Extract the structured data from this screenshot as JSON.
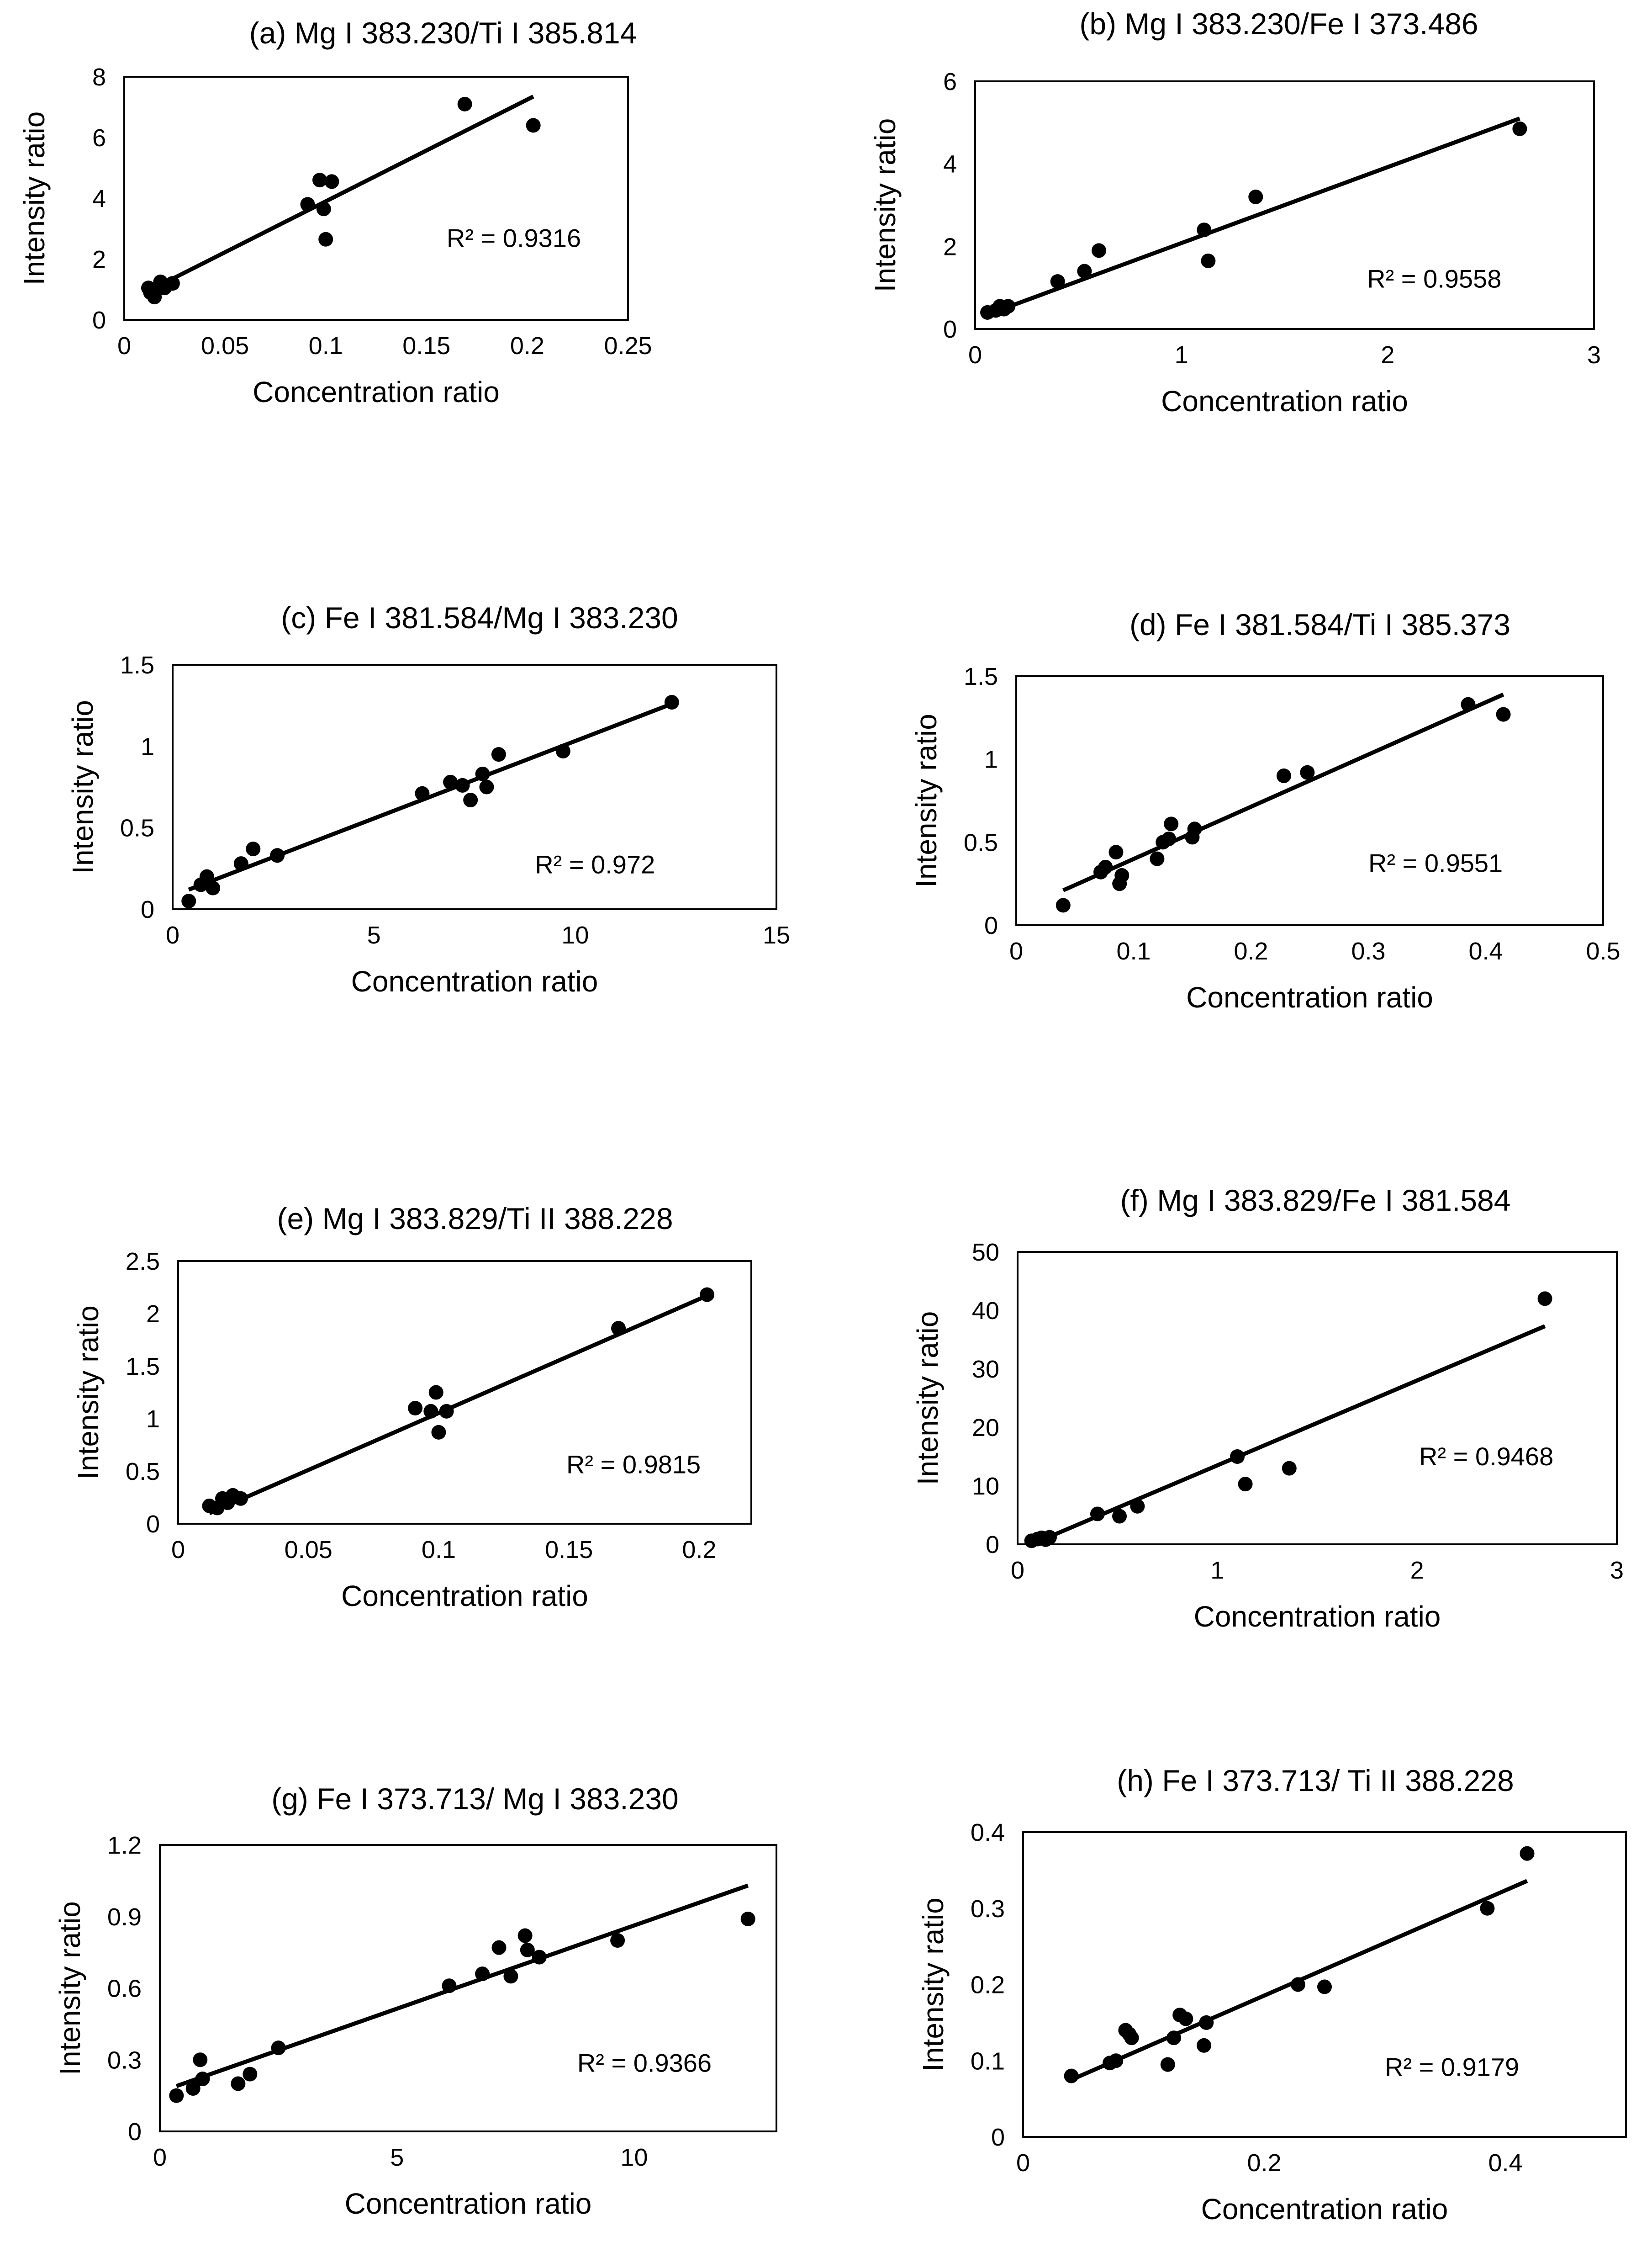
{
  "colors": {
    "marker": "#000000",
    "line": "#000000",
    "frame": "#000000",
    "background": "#ffffff"
  },
  "chart_data": [
    {
      "type": "scatter",
      "title": "(a) Mg I 383.230/Ti I 385.814",
      "xlabel": "Concentration ratio",
      "ylabel": "Intensity ratio",
      "xlim": [
        0,
        0.25
      ],
      "ylim": [
        0,
        8
      ],
      "xticks": [
        0,
        0.05,
        0.1,
        0.15,
        0.2,
        0.25
      ],
      "xtick_labels": [
        "0",
        "0.05",
        "0.1",
        "0.15",
        "0.2",
        "0.25"
      ],
      "yticks": [
        0,
        2,
        4,
        6,
        8
      ],
      "ytick_labels": [
        "0",
        "2",
        "4",
        "6",
        "8"
      ],
      "points": [
        [
          0.012,
          1.05
        ],
        [
          0.013,
          0.9
        ],
        [
          0.015,
          0.75
        ],
        [
          0.016,
          1.0
        ],
        [
          0.018,
          1.25
        ],
        [
          0.02,
          1.05
        ],
        [
          0.024,
          1.2
        ],
        [
          0.091,
          3.8
        ],
        [
          0.097,
          4.6
        ],
        [
          0.099,
          3.65
        ],
        [
          0.1,
          2.65
        ],
        [
          0.103,
          4.55
        ],
        [
          0.169,
          7.1
        ],
        [
          0.203,
          6.4
        ]
      ],
      "trendline": [
        [
          0.012,
          0.95
        ],
        [
          0.203,
          7.35
        ]
      ],
      "r2_label": "R² = 0.9316",
      "r2_pos": [
        0.16,
        2.4
      ]
    },
    {
      "type": "scatter",
      "title": "(b) Mg I 383.230/Fe I 373.486",
      "xlabel": "Concentration ratio",
      "ylabel": "Intensity ratio",
      "xlim": [
        0,
        3
      ],
      "ylim": [
        0,
        6
      ],
      "xticks": [
        0,
        1,
        2,
        3
      ],
      "xtick_labels": [
        "0",
        "1",
        "2",
        "3"
      ],
      "yticks": [
        0,
        2,
        4,
        6
      ],
      "ytick_labels": [
        "0",
        "2",
        "4",
        "6"
      ],
      "points": [
        [
          0.06,
          0.4
        ],
        [
          0.1,
          0.45
        ],
        [
          0.12,
          0.55
        ],
        [
          0.14,
          0.48
        ],
        [
          0.16,
          0.55
        ],
        [
          0.4,
          1.15
        ],
        [
          0.53,
          1.4
        ],
        [
          0.6,
          1.9
        ],
        [
          1.11,
          2.4
        ],
        [
          1.13,
          1.65
        ],
        [
          1.36,
          3.2
        ],
        [
          2.64,
          4.85
        ]
      ],
      "trendline": [
        [
          0.06,
          0.35
        ],
        [
          2.64,
          5.1
        ]
      ],
      "r2_label": "R² = 0.9558",
      "r2_pos": [
        1.9,
        1.0
      ]
    },
    {
      "type": "scatter",
      "title": "(c) Fe I 381.584/Mg I 383.230",
      "xlabel": "Concentration ratio",
      "ylabel": "Intensity ratio",
      "xlim": [
        0,
        15
      ],
      "ylim": [
        0,
        1.5
      ],
      "xticks": [
        0,
        5,
        10,
        15
      ],
      "xtick_labels": [
        "0",
        "5",
        "10",
        "15"
      ],
      "yticks": [
        0,
        0.5,
        1,
        1.5
      ],
      "ytick_labels": [
        "0",
        "0.5",
        "1",
        "1.5"
      ],
      "points": [
        [
          0.4,
          0.05
        ],
        [
          0.7,
          0.15
        ],
        [
          0.85,
          0.2
        ],
        [
          1.0,
          0.13
        ],
        [
          1.7,
          0.28
        ],
        [
          2.0,
          0.37
        ],
        [
          2.6,
          0.33
        ],
        [
          6.2,
          0.71
        ],
        [
          6.9,
          0.78
        ],
        [
          7.2,
          0.76
        ],
        [
          7.4,
          0.67
        ],
        [
          7.7,
          0.83
        ],
        [
          7.8,
          0.75
        ],
        [
          8.1,
          0.95
        ],
        [
          9.7,
          0.97
        ],
        [
          12.4,
          1.27
        ]
      ],
      "trendline": [
        [
          0.4,
          0.12
        ],
        [
          12.4,
          1.26
        ]
      ],
      "r2_label": "R² = 0.972",
      "r2_pos": [
        9.0,
        0.22
      ]
    },
    {
      "type": "scatter",
      "title": "(d) Fe I 381.584/Ti I 385.373",
      "xlabel": "Concentration ratio",
      "ylabel": "Intensity ratio",
      "xlim": [
        0,
        0.5
      ],
      "ylim": [
        0,
        1.5
      ],
      "xticks": [
        0,
        0.1,
        0.2,
        0.3,
        0.4,
        0.5
      ],
      "xtick_labels": [
        "0",
        "0.1",
        "0.2",
        "0.3",
        "0.4",
        "0.5"
      ],
      "yticks": [
        0,
        0.5,
        1,
        1.5
      ],
      "ytick_labels": [
        "0",
        "0.5",
        "1",
        "1.5"
      ],
      "points": [
        [
          0.04,
          0.12
        ],
        [
          0.072,
          0.32
        ],
        [
          0.076,
          0.35
        ],
        [
          0.085,
          0.44
        ],
        [
          0.088,
          0.25
        ],
        [
          0.09,
          0.3
        ],
        [
          0.12,
          0.4
        ],
        [
          0.125,
          0.5
        ],
        [
          0.13,
          0.52
        ],
        [
          0.132,
          0.61
        ],
        [
          0.15,
          0.53
        ],
        [
          0.152,
          0.58
        ],
        [
          0.228,
          0.9
        ],
        [
          0.248,
          0.92
        ],
        [
          0.385,
          1.33
        ],
        [
          0.415,
          1.27
        ]
      ],
      "trendline": [
        [
          0.04,
          0.21
        ],
        [
          0.415,
          1.39
        ]
      ],
      "r2_label": "R² = 0.9551",
      "r2_pos": [
        0.3,
        0.32
      ]
    },
    {
      "type": "scatter",
      "title": "(e) Mg I 383.829/Ti II 388.228",
      "xlabel": "Concentration ratio",
      "ylabel": "Intensity ratio",
      "xlim": [
        0,
        0.22
      ],
      "ylim": [
        0,
        2.5
      ],
      "xticks": [
        0,
        0.05,
        0.1,
        0.15,
        0.2
      ],
      "xtick_labels": [
        "0",
        "0.05",
        "0.1",
        "0.15",
        "0.2"
      ],
      "yticks": [
        0,
        0.5,
        1,
        1.5,
        2,
        2.5
      ],
      "ytick_labels": [
        "0",
        "0.5",
        "1",
        "1.5",
        "2",
        "2.5"
      ],
      "points": [
        [
          0.012,
          0.17
        ],
        [
          0.015,
          0.15
        ],
        [
          0.017,
          0.24
        ],
        [
          0.019,
          0.2
        ],
        [
          0.021,
          0.27
        ],
        [
          0.024,
          0.24
        ],
        [
          0.091,
          1.1
        ],
        [
          0.097,
          1.07
        ],
        [
          0.099,
          1.25
        ],
        [
          0.1,
          0.87
        ],
        [
          0.103,
          1.07
        ],
        [
          0.169,
          1.86
        ],
        [
          0.203,
          2.18
        ]
      ],
      "trendline": [
        [
          0.012,
          0.1
        ],
        [
          0.203,
          2.17
        ]
      ],
      "r2_label": "R² = 0.9815",
      "r2_pos": [
        0.149,
        0.48
      ]
    },
    {
      "type": "scatter",
      "title": "(f) Mg I 383.829/Fe I 381.584",
      "xlabel": "Concentration ratio",
      "ylabel": "Intensity ratio",
      "xlim": [
        0,
        3
      ],
      "ylim": [
        0,
        50
      ],
      "xticks": [
        0,
        1,
        2,
        3
      ],
      "xtick_labels": [
        "0",
        "1",
        "2",
        "3"
      ],
      "yticks": [
        0,
        10,
        20,
        30,
        40,
        50
      ],
      "ytick_labels": [
        "0",
        "10",
        "20",
        "30",
        "40",
        "50"
      ],
      "points": [
        [
          0.07,
          0.6
        ],
        [
          0.1,
          0.9
        ],
        [
          0.12,
          1.1
        ],
        [
          0.14,
          0.8
        ],
        [
          0.16,
          1.2
        ],
        [
          0.4,
          5.2
        ],
        [
          0.51,
          4.8
        ],
        [
          0.6,
          6.5
        ],
        [
          1.1,
          15.0
        ],
        [
          1.14,
          10.3
        ],
        [
          1.36,
          13.0
        ],
        [
          2.64,
          42.0
        ]
      ],
      "trendline": [
        [
          0.07,
          0.0
        ],
        [
          2.64,
          37.3
        ]
      ],
      "r2_label": "R² = 0.9468",
      "r2_pos": [
        2.01,
        13.5
      ]
    },
    {
      "type": "scatter",
      "title": "(g) Fe I 373.713/ Mg I 383.230",
      "xlabel": "Concentration ratio",
      "ylabel": "Intensity ratio",
      "xlim": [
        0,
        13
      ],
      "ylim": [
        0,
        1.2
      ],
      "xticks": [
        0,
        5,
        10
      ],
      "xtick_labels": [
        "0",
        "5",
        "10"
      ],
      "yticks": [
        0,
        0.3,
        0.6,
        0.9,
        1.2
      ],
      "ytick_labels": [
        "0",
        "0.3",
        "0.6",
        "0.9",
        "1.2"
      ],
      "points": [
        [
          0.35,
          0.15
        ],
        [
          0.7,
          0.18
        ],
        [
          0.85,
          0.3
        ],
        [
          0.9,
          0.22
        ],
        [
          1.65,
          0.2
        ],
        [
          1.9,
          0.24
        ],
        [
          2.5,
          0.35
        ],
        [
          6.1,
          0.61
        ],
        [
          6.8,
          0.66
        ],
        [
          7.15,
          0.77
        ],
        [
          7.4,
          0.65
        ],
        [
          7.7,
          0.82
        ],
        [
          7.75,
          0.76
        ],
        [
          8.0,
          0.73
        ],
        [
          9.65,
          0.8
        ],
        [
          12.4,
          0.89
        ]
      ],
      "trendline": [
        [
          0.35,
          0.19
        ],
        [
          12.4,
          1.03
        ]
      ],
      "r2_label": "R² = 0.9366",
      "r2_pos": [
        8.8,
        0.25
      ]
    },
    {
      "type": "scatter",
      "title": "(h) Fe I 373.713/ Ti II 388.228",
      "xlabel": "Concentration ratio",
      "ylabel": "Intensity ratio",
      "xlim": [
        0,
        0.5
      ],
      "ylim": [
        0,
        0.4
      ],
      "xticks": [
        0,
        0.2,
        0.4
      ],
      "xtick_labels": [
        "0",
        "0.2",
        "0.4"
      ],
      "yticks": [
        0,
        0.1,
        0.2,
        0.3,
        0.4
      ],
      "ytick_labels": [
        "0",
        "0.1",
        "0.2",
        "0.3",
        "0.4"
      ],
      "points": [
        [
          0.04,
          0.08
        ],
        [
          0.072,
          0.097
        ],
        [
          0.077,
          0.1
        ],
        [
          0.085,
          0.14
        ],
        [
          0.088,
          0.135
        ],
        [
          0.09,
          0.13
        ],
        [
          0.12,
          0.095
        ],
        [
          0.125,
          0.13
        ],
        [
          0.13,
          0.16
        ],
        [
          0.135,
          0.155
        ],
        [
          0.15,
          0.12
        ],
        [
          0.152,
          0.15
        ],
        [
          0.228,
          0.2
        ],
        [
          0.25,
          0.197
        ],
        [
          0.385,
          0.3
        ],
        [
          0.418,
          0.372
        ]
      ],
      "trendline": [
        [
          0.04,
          0.075
        ],
        [
          0.418,
          0.336
        ]
      ],
      "r2_label": "R² = 0.9179",
      "r2_pos": [
        0.3,
        0.08
      ]
    }
  ]
}
